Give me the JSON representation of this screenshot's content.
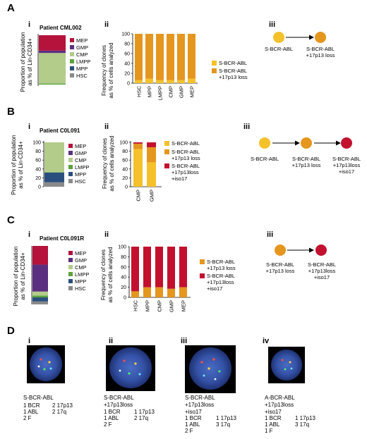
{
  "colors": {
    "MEP": "#b5123c",
    "GMP": "#5b2f80",
    "CMP": "#b3cc8a",
    "LMPP": "#5aa33a",
    "MPP": "#2a4f7e",
    "HSC": "#8a8a8a",
    "sbcr": "#f5c12a",
    "loss17p13": "#e5961e",
    "iso17": "#c2102e"
  },
  "panelA": {
    "letter": "A",
    "i": {
      "label": "i",
      "patient": "Patient CML002",
      "ylabel1": "Proportion of population",
      "ylabel2": "as % of Lin-CD34+",
      "legend": [
        "MEP",
        "GMP",
        "CMP",
        "LMPP",
        "MPP",
        "HSC"
      ]
    },
    "ii": {
      "label": "ii",
      "ylabel1": "Frequency of clones",
      "ylabel2": "as % of cells analyzed",
      "yticks": [
        "0",
        "20",
        "40",
        "60",
        "80",
        "100"
      ],
      "legend": [
        {
          "l1": "S-BCR-ABL",
          "l2": ""
        },
        {
          "l1": "S-BCR-ABL",
          "l2": "+17p13 loss"
        }
      ]
    },
    "iii": {
      "label": "iii",
      "nodes": [
        {
          "l1": "S-BCR-ABL",
          "l2": ""
        },
        {
          "l1": "S-BCR-ABL",
          "l2": "+17p13 loss"
        }
      ]
    }
  },
  "panelB": {
    "letter": "B",
    "i": {
      "label": "i",
      "patient": "Patient C0L091",
      "ylabel1": "Proportion of population",
      "ylabel2": "as % of Lin-CD34+",
      "yticks": [
        "0",
        "20",
        "40",
        "60",
        "80",
        "100"
      ],
      "legend": [
        "MEP",
        "GMP",
        "CMP",
        "LMPP",
        "MPP",
        "HSC"
      ]
    },
    "ii": {
      "label": "ii",
      "ylabel1": "Frequency of clones",
      "ylabel2": "as % of cells analyzed",
      "yticks": [
        "0",
        "20",
        "40",
        "60",
        "80",
        "100"
      ],
      "legend": [
        {
          "l1": "S-BCR-ABL",
          "l2": "",
          "l3": ""
        },
        {
          "l1": "S-BCR-ABL",
          "l2": "+17p13 loss",
          "l3": ""
        },
        {
          "l1": "S-BCR-ABL",
          "l2": "+17p13loss",
          "l3": "+iso17"
        }
      ]
    },
    "iii": {
      "label": "iii",
      "nodes": [
        {
          "l1": "S-BCR-ABL",
          "l2": "",
          "l3": ""
        },
        {
          "l1": "S-BCR-ABL",
          "l2": "+17p13 loss",
          "l3": ""
        },
        {
          "l1": "S-BCR-ABL",
          "l2": "+17p13loss",
          "l3": "+iso17"
        }
      ]
    }
  },
  "panelC": {
    "letter": "C",
    "i": {
      "label": "i",
      "patient": "Patient C0L091R",
      "ylabel1": "Proportion of population",
      "ylabel2": "as % of Lin-CD34+",
      "legend": [
        "MEP",
        "GMP",
        "CMP",
        "LMPP",
        "MPP",
        "HSC"
      ]
    },
    "ii": {
      "label": "ii",
      "ylabel1": "Frequency of clones",
      "ylabel2": "as % of cells analyzed",
      "yticks": [
        "0",
        "20",
        "40",
        "60",
        "80",
        "100"
      ],
      "legend": [
        {
          "l1": "S-BCR-ABL",
          "l2": "+17p13 loss",
          "l3": ""
        },
        {
          "l1": "S-BCR-ABL",
          "l2": "+17p13loss",
          "l3": "+iso17"
        }
      ]
    },
    "iii": {
      "label": "iii",
      "nodes": [
        {
          "l1": "S-BCR-ABL",
          "l2": "+17p13 loss",
          "l3": ""
        },
        {
          "l1": "S-BCR-ABL",
          "l2": "+17p13loss",
          "l3": "+iso17"
        }
      ]
    }
  },
  "panelD": {
    "letter": "D",
    "cells": [
      {
        "label": "i",
        "lines": [
          "S-BCR-ABL"
        ],
        "counts": [
          [
            "1 BCR",
            "2 17p13"
          ],
          [
            "1 ABL",
            "2 17q"
          ],
          [
            "2 F",
            ""
          ]
        ]
      },
      {
        "label": "ii",
        "lines": [
          "S-BCR-ABL",
          "+17p13loss"
        ],
        "counts": [
          [
            "1 BCR",
            "1 17p13"
          ],
          [
            "1 ABL",
            "2 17q"
          ],
          [
            "2 F",
            ""
          ]
        ]
      },
      {
        "label": "iii",
        "lines": [
          "S-BCR-ABL",
          "+17p13loss",
          "+iso17"
        ],
        "counts": [
          [
            "1 BCR",
            "1 17p13"
          ],
          [
            "1 ABL",
            "3 17q"
          ],
          [
            "2 F",
            ""
          ]
        ]
      },
      {
        "label": "iv",
        "lines": [
          "A-BCR-ABL",
          "+17p13loss",
          "+iso17"
        ],
        "counts": [
          [
            "1 BCR",
            "1 17p13"
          ],
          [
            "1 ABL",
            "3 17q"
          ],
          [
            "1 F",
            ""
          ]
        ]
      }
    ]
  },
  "chart_data": [
    {
      "id": "A-i",
      "type": "bar",
      "categories": [
        "Patient CML002"
      ],
      "series": [
        {
          "name": "HSC",
          "values": [
            0
          ]
        },
        {
          "name": "MPP",
          "values": [
            0
          ]
        },
        {
          "name": "LMPP",
          "values": [
            2
          ]
        },
        {
          "name": "CMP",
          "values": [
            62
          ]
        },
        {
          "name": "GMP",
          "values": [
            5
          ]
        },
        {
          "name": "MEP",
          "values": [
            31
          ]
        }
      ],
      "stacked": true,
      "ylim": [
        0,
        100
      ]
    },
    {
      "id": "A-ii",
      "type": "bar",
      "categories": [
        "HSC",
        "MPP",
        "LMPP",
        "CMP",
        "GMP",
        "MEP"
      ],
      "series": [
        {
          "name": "S-BCR-ABL",
          "values": [
            6,
            9,
            6,
            6,
            6,
            9
          ]
        },
        {
          "name": "S-BCR-ABL +17p13 loss",
          "values": [
            94,
            91,
            94,
            94,
            94,
            91
          ]
        }
      ],
      "stacked": true,
      "ylim": [
        0,
        100
      ]
    },
    {
      "id": "B-i",
      "type": "bar",
      "categories": [
        "Patient C0L091"
      ],
      "series": [
        {
          "name": "HSC",
          "values": [
            10
          ]
        },
        {
          "name": "MPP",
          "values": [
            22
          ]
        },
        {
          "name": "LMPP",
          "values": [
            1
          ]
        },
        {
          "name": "CMP",
          "values": [
            67
          ]
        },
        {
          "name": "GMP",
          "values": [
            0
          ]
        },
        {
          "name": "MEP",
          "values": [
            0
          ]
        }
      ],
      "stacked": true,
      "ylim": [
        0,
        100
      ]
    },
    {
      "id": "B-ii",
      "type": "bar",
      "categories": [
        "CMP",
        "GMP"
      ],
      "series": [
        {
          "name": "S-BCR-ABL",
          "values": [
            85,
            55
          ]
        },
        {
          "name": "S-BCR-ABL +17p13 loss",
          "values": [
            12,
            34
          ]
        },
        {
          "name": "S-BCR-ABL +17p13loss +iso17",
          "values": [
            3,
            11
          ]
        }
      ],
      "stacked": true,
      "ylim": [
        0,
        100
      ]
    },
    {
      "id": "C-i",
      "type": "bar",
      "categories": [
        "Patient C0L091R"
      ],
      "series": [
        {
          "name": "HSC",
          "values": [
            5
          ]
        },
        {
          "name": "MPP",
          "values": [
            7
          ]
        },
        {
          "name": "LMPP",
          "values": [
            3
          ]
        },
        {
          "name": "CMP",
          "values": [
            7
          ]
        },
        {
          "name": "GMP",
          "values": [
            46
          ]
        },
        {
          "name": "MEP",
          "values": [
            32
          ]
        }
      ],
      "stacked": true,
      "ylim": [
        0,
        100
      ]
    },
    {
      "id": "C-ii",
      "type": "bar",
      "categories": [
        "HSC",
        "MPP",
        "CMP",
        "GMP",
        "MEP"
      ],
      "series": [
        {
          "name": "S-BCR-ABL +17p13 loss",
          "values": [
            12,
            20,
            20,
            17,
            20
          ]
        },
        {
          "name": "S-BCR-ABL +17p13loss +iso17",
          "values": [
            88,
            80,
            80,
            83,
            80
          ]
        }
      ],
      "stacked": true,
      "ylim": [
        0,
        100
      ]
    }
  ]
}
